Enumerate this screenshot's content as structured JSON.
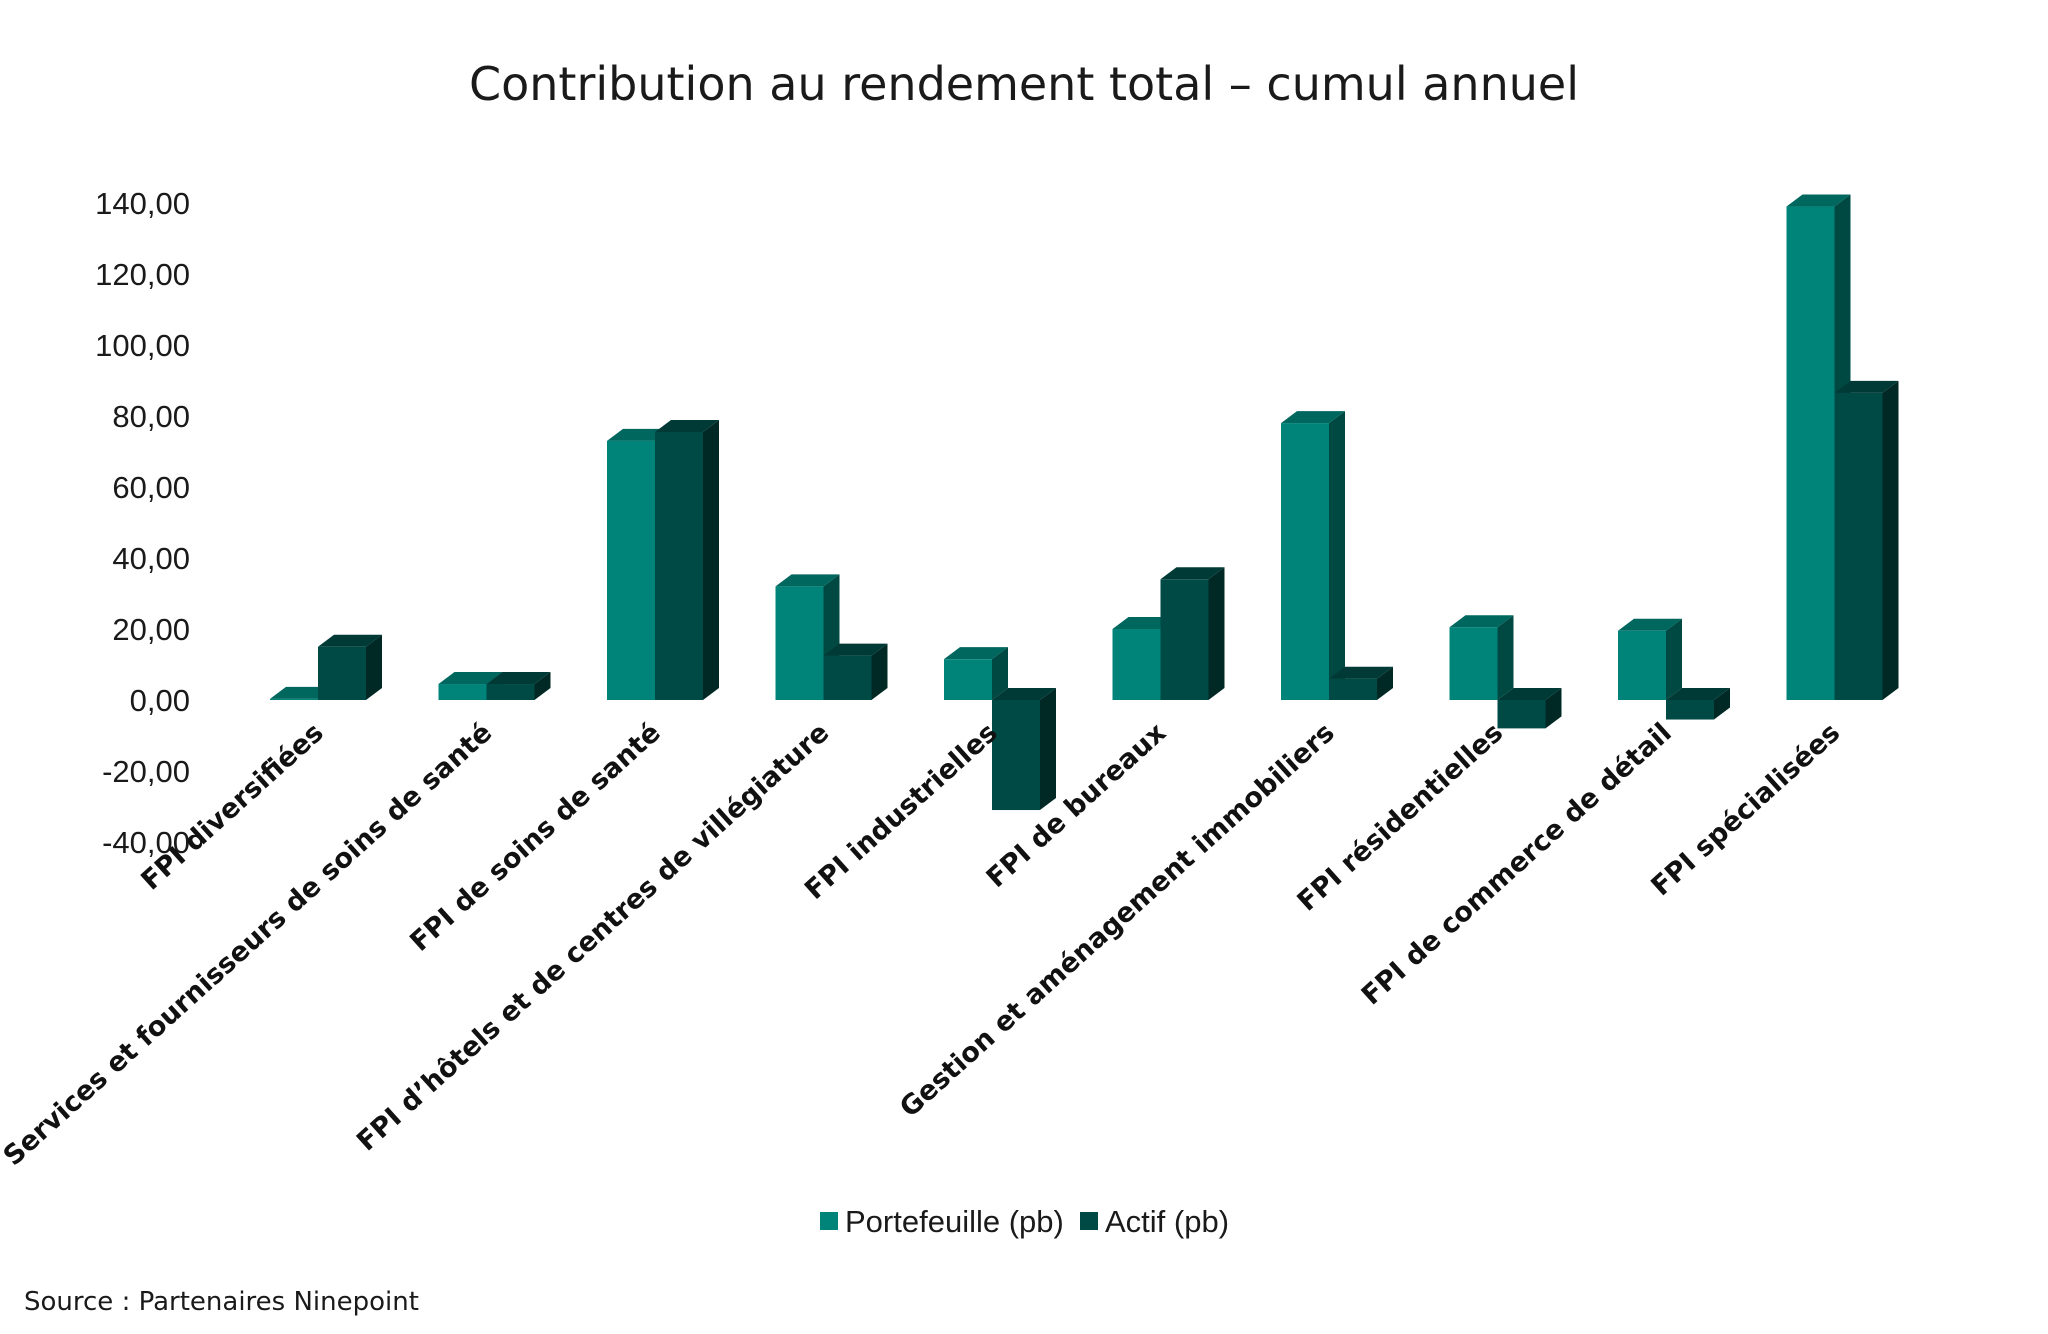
{
  "chart_data": {
    "type": "bar",
    "title": "Contribution au rendement total – cumul annuel",
    "xlabel": "",
    "ylabel": "",
    "ylim": [
      -40,
      140
    ],
    "yticks": [
      "140,00",
      "120,00",
      "100,00",
      "80,00",
      "60,00",
      "40,00",
      "20,00",
      "0,00",
      "-20,00",
      "-40,00"
    ],
    "ytick_values": [
      140,
      120,
      100,
      80,
      60,
      40,
      20,
      0,
      -20,
      -40
    ],
    "categories": [
      "FPI diversifiées",
      "Services et fournisseurs de soins de santé",
      "FPI de soins de santé",
      "FPI d’hôtels et de centres de villégiature",
      "FPI industrielles",
      "FPI de bureaux",
      "Gestion et aménagement immobiliers",
      "FPI résidentielles",
      "FPI de commerce de détail",
      "FPI spécialisées"
    ],
    "series": [
      {
        "name": "Portefeuille (pb)",
        "color": "#00847a",
        "values": [
          0.3,
          4.5,
          73,
          32,
          11.5,
          20,
          78,
          20.5,
          19.5,
          139
        ]
      },
      {
        "name": "Actif (pb)",
        "color": "#004a45",
        "values": [
          15,
          4.5,
          75.5,
          12.5,
          -31,
          34,
          6,
          -8,
          -5.5,
          86.5
        ]
      }
    ],
    "grid": false,
    "legend_position": "bottom-center",
    "source": "Source : Partenaires Ninepoint"
  }
}
